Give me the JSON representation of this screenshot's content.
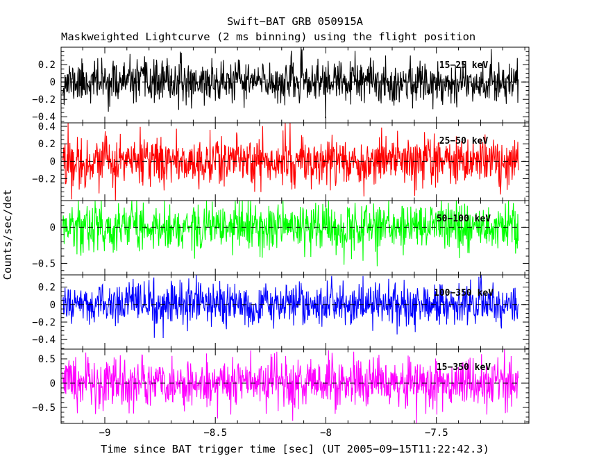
{
  "figure": {
    "title": "Swift−BAT GRB 050915A",
    "subtitle": "Maskweighted Lightcurve (2 ms binning) using the flight position",
    "xlabel": "Time since BAT trigger time [sec] (UT 2005−09−15T11:22:42.3)",
    "ylabel": "Counts/sec/det"
  },
  "chart_data": {
    "type": "line",
    "title": "Swift−BAT GRB 050915A",
    "subtitle": "Maskweighted Lightcurve (2 ms binning) using the flight position",
    "xlabel": "Time since BAT trigger time [sec] (UT 2005−09−15T11:22:42.3)",
    "ylabel": "Counts/sec/det",
    "grid": false,
    "legend": "per-panel band label, upper right area, colored as series",
    "x_range": [
      -9.2,
      -7.08
    ],
    "x_major_ticks": [
      -9,
      -8.5,
      -8,
      -7.5
    ],
    "x_tick_labels": [
      "−9",
      "−8.5",
      "−8",
      "−7.5"
    ],
    "x_minor_step": 0.1,
    "bin_width_sec": 0.002,
    "data_start_sec": -9.19,
    "data_end_sec": -7.13,
    "zero_line_style": "black dashed at y=0 in every panel",
    "panels": [
      {
        "band": "15−25 keV",
        "color": "#000000",
        "y_min": -0.47,
        "y_max": 0.4,
        "y_minor_step": 0.05,
        "y_tick_values": [
          0.2,
          0,
          -0.2,
          -0.4
        ],
        "y_tick_labels": [
          "0.2",
          "0",
          "−0.2",
          "−0.4"
        ],
        "noise_mean": 0,
        "noise_std": 0.12,
        "seed": 11
      },
      {
        "band": "25−50 keV",
        "color": "#ff0000",
        "y_min": -0.45,
        "y_max": 0.44,
        "y_minor_step": 0.05,
        "y_tick_values": [
          0.4,
          0.2,
          0,
          -0.2
        ],
        "y_tick_labels": [
          "0.4",
          "0.2",
          "0",
          "−0.2"
        ],
        "noise_mean": 0,
        "noise_std": 0.14,
        "seed": 22
      },
      {
        "band": "50−100 keV",
        "color": "#00ff00",
        "y_min": -0.66,
        "y_max": 0.37,
        "y_minor_step": 0.1,
        "y_tick_values": [
          0,
          -0.5
        ],
        "y_tick_labels": [
          "0",
          "−0.5"
        ],
        "noise_mean": 0,
        "noise_std": 0.17,
        "seed": 33
      },
      {
        "band": "100−350 keV",
        "color": "#0000ff",
        "y_min": -0.51,
        "y_max": 0.34,
        "y_minor_step": 0.05,
        "y_tick_values": [
          0.2,
          0,
          -0.2,
          -0.4
        ],
        "y_tick_labels": [
          "0.2",
          "0",
          "−0.2",
          "−0.4"
        ],
        "noise_mean": 0,
        "noise_std": 0.12,
        "seed": 44
      },
      {
        "band": "15−350 keV",
        "color": "#ff00ff",
        "y_min": -0.83,
        "y_max": 0.7,
        "y_minor_step": 0.1,
        "y_tick_values": [
          0.5,
          0,
          -0.5
        ],
        "y_tick_labels": [
          "0.5",
          "0",
          "−0.5"
        ],
        "noise_mean": 0,
        "noise_std": 0.26,
        "seed": 55
      }
    ]
  }
}
